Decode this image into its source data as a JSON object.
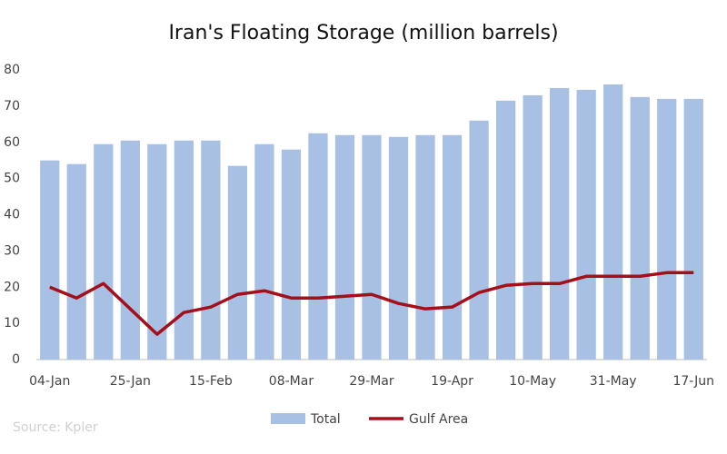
{
  "chart_data": {
    "type": "bar_line",
    "title": "Iran's Floating Storage (million barrels)",
    "source": "Source: Kpler",
    "categories": [
      "04-Jan",
      null,
      null,
      "25-Jan",
      null,
      null,
      "15-Feb",
      null,
      null,
      "08-Mar",
      null,
      null,
      "29-Mar",
      null,
      null,
      "19-Apr",
      null,
      null,
      "10-May",
      null,
      null,
      "31-May",
      null,
      null,
      "17-Jun"
    ],
    "series": [
      {
        "name": "Total",
        "type": "bar",
        "color": "#a7c0e4",
        "values": [
          55,
          54,
          59.5,
          60.5,
          59.5,
          60.5,
          60.5,
          53.5,
          59.5,
          58,
          62.5,
          62,
          62,
          61.5,
          62,
          62,
          66,
          71.5,
          73,
          75,
          74.5,
          76,
          72.5,
          72,
          72
        ]
      },
      {
        "name": "Gulf Area",
        "type": "line",
        "color": "#a50f1a",
        "values": [
          20,
          17,
          21,
          14,
          7,
          13,
          14.5,
          18,
          19,
          17,
          17,
          17.5,
          18,
          15.5,
          14,
          14.5,
          18.5,
          20.5,
          21,
          21,
          23,
          23,
          23,
          24,
          24
        ]
      }
    ],
    "ylim": [
      0,
      80
    ],
    "yticks": [
      0,
      10,
      20,
      30,
      40,
      50,
      60,
      70,
      80
    ],
    "grid": false
  }
}
